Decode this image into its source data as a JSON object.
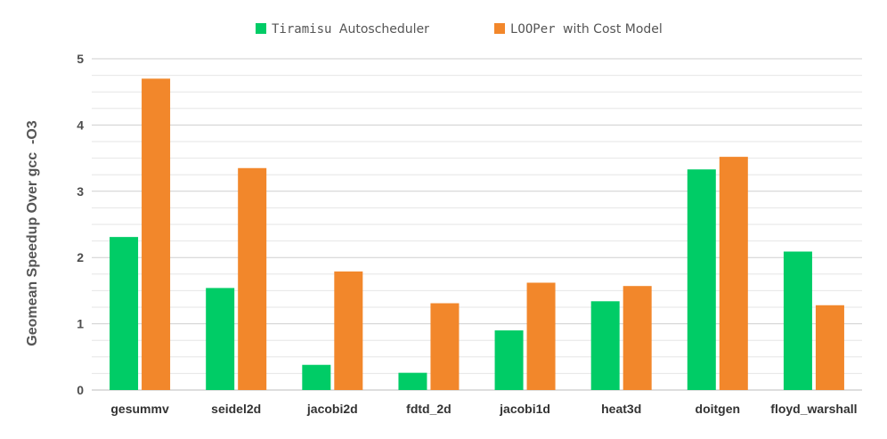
{
  "chart_data": {
    "type": "bar",
    "title": "",
    "xlabel": "",
    "ylabel": "Geomean Speedup Over gcc  -O3",
    "ylim": [
      0,
      5
    ],
    "yticks": [
      "0",
      "1",
      "2",
      "3",
      "4",
      "5"
    ],
    "minor_grid_step": 0.25,
    "legend_position": "top-center",
    "categories": [
      "gesummv",
      "seidel2d",
      "jacobi2d",
      "fdtd_2d",
      "jacobi1d",
      "heat3d",
      "doitgen",
      "floyd_warshall"
    ],
    "series": [
      {
        "name": "Tiramisu Autoscheduler",
        "name_parts": [
          "Tiramisu",
          "Autoscheduler"
        ],
        "color": "#00cc66",
        "values": [
          2.31,
          1.54,
          0.38,
          0.26,
          0.9,
          1.34,
          3.33,
          2.09
        ]
      },
      {
        "name": "LOOPer with Cost Model",
        "name_parts": [
          "LOOPer",
          "with Cost Model"
        ],
        "color": "#f2872b",
        "values": [
          4.7,
          3.35,
          1.79,
          1.31,
          1.62,
          1.57,
          3.52,
          1.28
        ]
      }
    ]
  }
}
